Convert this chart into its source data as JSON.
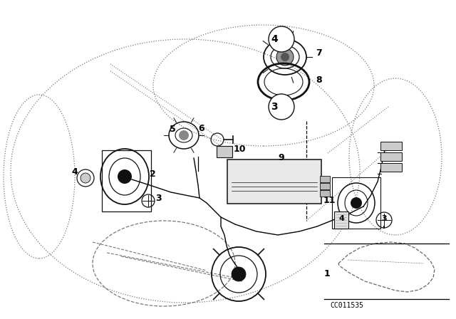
{
  "bg_color": "#ffffff",
  "line_color": "#000000",
  "diagram_code": "CC011535",
  "car_color": "#777777",
  "comp_color": "#111111",
  "label_fontsize": 9,
  "legend_fontsize": 8,
  "code_fontsize": 7
}
